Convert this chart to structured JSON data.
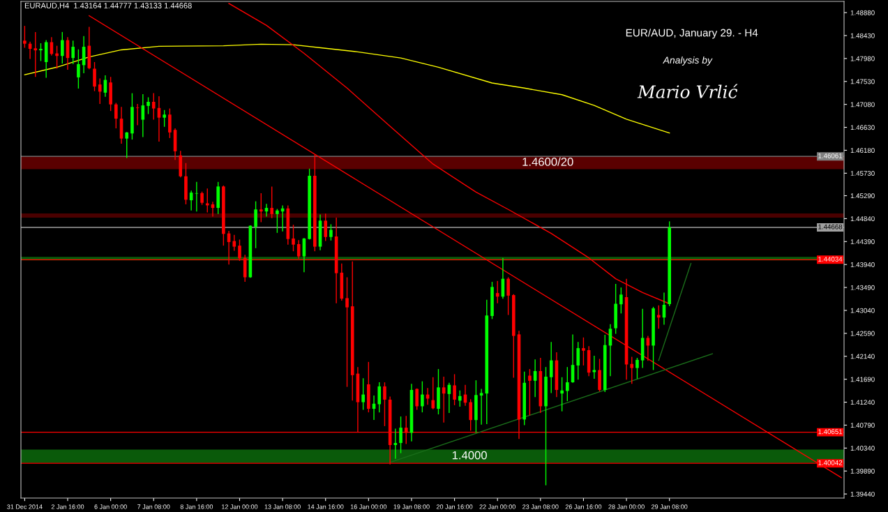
{
  "chart_data": {
    "type": "candlestick",
    "title": "EUR/AUD, January 29. - H4",
    "subtitle": "Analysis by",
    "annotations": [
      "Mario Vrlić",
      "EURAUD,H4  1.43164 1.44777 1.43133 1.44668"
    ],
    "categories": [
      "31 Dec 2014",
      null,
      null,
      null,
      null,
      null,
      null,
      null,
      "2 Jan 16:00",
      null,
      null,
      null,
      null,
      null,
      null,
      null,
      "6 Jan 00:00",
      null,
      null,
      null,
      null,
      null,
      null,
      null,
      "7 Jan 08:00",
      null,
      null,
      null,
      null,
      null,
      null,
      null,
      "8 Jan 16:00",
      null,
      null,
      null,
      null,
      null,
      null,
      null,
      "12 Jan 00:00",
      null,
      null,
      null,
      null,
      null,
      null,
      null,
      "13 Jan 08:00",
      null,
      null,
      null,
      null,
      null,
      null,
      null,
      "14 Jan 16:00",
      null,
      null,
      null,
      null,
      null,
      null,
      null,
      "16 Jan 00:00",
      null,
      null,
      null,
      null,
      null,
      null,
      null,
      "19 Jan 08:00",
      null,
      null,
      null,
      null,
      null,
      null,
      null,
      "20 Jan 16:00",
      null,
      null,
      null,
      null,
      null,
      null,
      null,
      "22 Jan 00:00",
      null,
      null,
      null,
      null,
      null,
      null,
      null,
      "23 Jan 08:00",
      null,
      null,
      null,
      null,
      null,
      null,
      null,
      "26 Jan 16:00",
      null,
      null,
      null,
      null,
      null,
      null,
      null,
      "28 Jan 00:00",
      null,
      null,
      null,
      null,
      null,
      null,
      null,
      "29 Jan 08:00",
      null,
      null,
      null,
      null,
      null,
      null,
      null,
      null,
      null,
      null,
      null,
      null,
      null,
      null,
      null,
      null,
      null,
      null,
      null,
      null,
      null,
      null,
      null,
      null,
      null,
      null,
      null,
      null,
      null,
      null,
      null,
      null
    ],
    "ohlc": [
      [
        1.4833,
        1.4861,
        1.482,
        1.4827
      ],
      [
        1.4827,
        1.483,
        1.4798,
        1.4817
      ],
      [
        1.4818,
        1.4849,
        1.4763,
        1.4814
      ],
      [
        1.4814,
        1.4827,
        1.4794,
        1.4817
      ],
      [
        1.4791,
        1.4833,
        1.4761,
        1.483
      ],
      [
        1.483,
        1.4839,
        1.4805,
        1.4807
      ],
      [
        1.4808,
        1.4822,
        1.4779,
        1.4803
      ],
      [
        1.4803,
        1.4849,
        1.4789,
        1.4834
      ],
      [
        1.4834,
        1.4839,
        1.4777,
        1.4799
      ],
      [
        1.4799,
        1.4832,
        1.4788,
        1.4821
      ],
      [
        1.4761,
        1.4815,
        1.474,
        1.4787
      ],
      [
        1.4785,
        1.4841,
        1.477,
        1.4821
      ],
      [
        1.4823,
        1.4859,
        1.4778,
        1.4779
      ],
      [
        1.4778,
        1.479,
        1.4735,
        1.4743
      ],
      [
        1.4747,
        1.4758,
        1.471,
        1.4733
      ],
      [
        1.4731,
        1.4764,
        1.4724,
        1.4756
      ],
      [
        1.4751,
        1.4761,
        1.4696,
        1.4708
      ],
      [
        1.4708,
        1.471,
        1.4662,
        1.468
      ],
      [
        1.468,
        1.4702,
        1.4632,
        1.4641
      ],
      [
        1.4641,
        1.4653,
        1.4604,
        1.4653
      ],
      [
        1.4651,
        1.4729,
        1.464,
        1.4703
      ],
      [
        1.4702,
        1.4708,
        1.4668,
        1.4701
      ],
      [
        1.4678,
        1.4727,
        1.4645,
        1.4706
      ],
      [
        1.4705,
        1.4721,
        1.469,
        1.4713
      ],
      [
        1.4713,
        1.4729,
        1.4679,
        1.47
      ],
      [
        1.4701,
        1.4723,
        1.4636,
        1.4682
      ],
      [
        1.4682,
        1.4696,
        1.4665,
        1.4688
      ],
      [
        1.4688,
        1.4699,
        1.4643,
        1.4653
      ],
      [
        1.4658,
        1.466,
        1.46,
        1.4616
      ],
      [
        1.4608,
        1.4616,
        1.4566,
        1.4567
      ],
      [
        1.4567,
        1.4592,
        1.4513,
        1.4521
      ],
      [
        1.452,
        1.4538,
        1.4501,
        1.4535
      ],
      [
        1.4533,
        1.4555,
        1.4499,
        1.4534
      ],
      [
        1.4534,
        1.4536,
        1.4512,
        1.4515
      ],
      [
        1.4514,
        1.4542,
        1.4497,
        1.451
      ],
      [
        1.4512,
        1.4516,
        1.4489,
        1.4505
      ],
      [
        1.4505,
        1.4555,
        1.4494,
        1.4547
      ],
      [
        1.4547,
        1.4548,
        1.4432,
        1.4454
      ],
      [
        1.4455,
        1.4459,
        1.4395,
        1.4438
      ],
      [
        1.444,
        1.4451,
        1.4422,
        1.4429
      ],
      [
        1.4431,
        1.4442,
        1.4402,
        1.4406
      ],
      [
        1.4407,
        1.4412,
        1.4361,
        1.4369
      ],
      [
        1.4369,
        1.447,
        1.4369,
        1.447
      ],
      [
        1.4468,
        1.4517,
        1.4427,
        1.4502
      ],
      [
        1.4502,
        1.4533,
        1.4478,
        1.4498
      ],
      [
        1.4498,
        1.4512,
        1.4489,
        1.4505
      ],
      [
        1.4505,
        1.4546,
        1.4486,
        1.4493
      ],
      [
        1.4493,
        1.4502,
        1.4457,
        1.45
      ],
      [
        1.4498,
        1.4509,
        1.446,
        1.4504
      ],
      [
        1.4504,
        1.4509,
        1.4434,
        1.4444
      ],
      [
        1.4445,
        1.4471,
        1.4421,
        1.4433
      ],
      [
        1.4434,
        1.4441,
        1.4406,
        1.441
      ],
      [
        1.441,
        1.4445,
        1.438,
        1.4445
      ],
      [
        1.4444,
        1.4581,
        1.4444,
        1.4568
      ],
      [
        1.4568,
        1.4608,
        1.4421,
        1.4429
      ],
      [
        1.4429,
        1.4491,
        1.4423,
        1.448
      ],
      [
        1.448,
        1.4493,
        1.4441,
        1.4448
      ],
      [
        1.4448,
        1.4472,
        1.4442,
        1.4462
      ],
      [
        1.4449,
        1.4485,
        1.4319,
        1.4377
      ],
      [
        1.4378,
        1.4395,
        1.4324,
        1.4327
      ],
      [
        1.4328,
        1.4368,
        1.4155,
        1.431
      ],
      [
        1.4312,
        1.4399,
        1.4128,
        1.4177
      ],
      [
        1.418,
        1.4192,
        1.4066,
        1.4124
      ],
      [
        1.4124,
        1.417,
        1.411,
        1.4139
      ],
      [
        1.4159,
        1.4202,
        1.4105,
        1.4111
      ],
      [
        1.4111,
        1.4136,
        1.409,
        1.4121
      ],
      [
        1.412,
        1.4162,
        1.4105,
        1.4155
      ],
      [
        1.4155,
        1.4162,
        1.4078,
        1.4129
      ],
      [
        1.4129,
        1.4134,
        1.4003,
        1.404
      ],
      [
        1.404,
        1.4071,
        1.4014,
        1.4044
      ],
      [
        1.4044,
        1.4095,
        1.4025,
        1.4074
      ],
      [
        1.4074,
        1.4096,
        1.4043,
        1.4064
      ],
      [
        1.4064,
        1.4159,
        1.4048,
        1.4148
      ],
      [
        1.415,
        1.415,
        1.411,
        1.4116
      ],
      [
        1.4116,
        1.4164,
        1.4105,
        1.4139
      ],
      [
        1.4139,
        1.4151,
        1.412,
        1.4131
      ],
      [
        1.4128,
        1.4172,
        1.4111,
        1.4112
      ],
      [
        1.4111,
        1.4188,
        1.4101,
        1.4153
      ],
      [
        1.4153,
        1.4173,
        1.4085,
        1.4141
      ],
      [
        1.414,
        1.4161,
        1.4104,
        1.4158
      ],
      [
        1.4157,
        1.4178,
        1.4119,
        1.4129
      ],
      [
        1.4127,
        1.4146,
        1.4116,
        1.4136
      ],
      [
        1.4139,
        1.4157,
        1.4118,
        1.4123
      ],
      [
        1.4124,
        1.4129,
        1.4069,
        1.4089
      ],
      [
        1.4089,
        1.4166,
        1.4065,
        1.4138
      ],
      [
        1.4137,
        1.4149,
        1.4081,
        1.4142
      ],
      [
        1.4141,
        1.4324,
        1.4082,
        1.4294
      ],
      [
        1.4293,
        1.4359,
        1.4288,
        1.435
      ],
      [
        1.4338,
        1.4361,
        1.4319,
        1.4331
      ],
      [
        1.4331,
        1.4406,
        1.4328,
        1.4366
      ],
      [
        1.4366,
        1.4368,
        1.4296,
        1.4333
      ],
      [
        1.4334,
        1.4335,
        1.4173,
        1.4254
      ],
      [
        1.4257,
        1.4263,
        1.4053,
        1.409
      ],
      [
        1.409,
        1.4183,
        1.408,
        1.4162
      ],
      [
        1.4176,
        1.4188,
        1.4099,
        1.4166
      ],
      [
        1.4166,
        1.4207,
        1.4135,
        1.4185
      ],
      [
        1.4185,
        1.421,
        1.4104,
        1.4116
      ],
      [
        1.4116,
        1.4192,
        1.3962,
        1.4174
      ],
      [
        1.4173,
        1.4241,
        1.4143,
        1.4206
      ],
      [
        1.4206,
        1.4221,
        1.4135,
        1.4148
      ],
      [
        1.4141,
        1.4172,
        1.4107,
        1.4147
      ],
      [
        1.4146,
        1.4192,
        1.4127,
        1.4163
      ],
      [
        1.4163,
        1.4256,
        1.4163,
        1.4197
      ],
      [
        1.4196,
        1.4241,
        1.4169,
        1.423
      ],
      [
        1.423,
        1.425,
        1.4197,
        1.4225
      ],
      [
        1.4226,
        1.4233,
        1.4176,
        1.4182
      ],
      [
        1.4183,
        1.4214,
        1.4171,
        1.4187
      ],
      [
        1.4187,
        1.4208,
        1.4146,
        1.4148
      ],
      [
        1.4148,
        1.4255,
        1.4145,
        1.4236
      ],
      [
        1.4235,
        1.4276,
        1.4176,
        1.4268
      ],
      [
        1.4269,
        1.4355,
        1.4259,
        1.4317
      ],
      [
        1.4316,
        1.4348,
        1.4299,
        1.4335
      ],
      [
        1.433,
        1.4365,
        1.4169,
        1.4198
      ],
      [
        1.4199,
        1.4212,
        1.4161,
        1.4191
      ],
      [
        1.4191,
        1.421,
        1.4171,
        1.4207
      ],
      [
        1.4206,
        1.4306,
        1.4192,
        1.425
      ],
      [
        1.425,
        1.4253,
        1.4206,
        1.4235
      ],
      [
        1.4235,
        1.431,
        1.4188,
        1.4308
      ],
      [
        1.4295,
        1.4313,
        1.4269,
        1.429
      ],
      [
        1.429,
        1.4338,
        1.4277,
        1.4315
      ],
      [
        1.43164,
        1.44777,
        1.43133,
        1.44668
      ],
      null,
      null,
      null,
      null,
      null,
      null,
      null,
      null,
      null,
      null,
      null,
      null,
      null,
      null,
      null,
      null,
      null,
      null,
      null,
      null,
      null,
      null,
      null,
      null,
      null,
      null,
      null,
      null,
      null,
      null,
      null,
      null
    ],
    "colors": [
      "#ff0000",
      "#ff0000",
      "#ff0000",
      "#00ff00",
      "#00ff00",
      "#ff0000",
      "#ff0000",
      "#00ff00",
      "#ff0000",
      "#00ff00",
      "#00ff00",
      "#00ff00",
      "#ff0000",
      "#ff0000",
      "#ff0000",
      "#00ff00",
      "#ff0000",
      "#ff0000",
      "#ff0000",
      "#00ff00",
      "#00ff00",
      "#ff0000",
      "#00ff00",
      "#00ff00",
      "#ff0000",
      "#ff0000",
      "#00ff00",
      "#ff0000",
      "#ff0000",
      "#ff0000",
      "#ff0000",
      "#00ff00",
      "#00ff00",
      "#ff0000",
      "#ff0000",
      "#ff0000",
      "#00ff00",
      "#ff0000",
      "#ff0000",
      "#ff0000",
      "#ff0000",
      "#ff0000",
      "#00ff00",
      "#00ff00",
      "#ff0000",
      "#00ff00",
      "#ff0000",
      "#00ff00",
      "#00ff00",
      "#ff0000",
      "#ff0000",
      "#ff0000",
      "#00ff00",
      "#00ff00",
      "#ff0000",
      "#00ff00",
      "#ff0000",
      "#00ff00",
      "#ff0000",
      "#ff0000",
      "#ff0000",
      "#ff0000",
      "#ff0000",
      "#00ff00",
      "#ff0000",
      "#00ff00",
      "#00ff00",
      "#ff0000",
      "#ff0000",
      "#00ff00",
      "#00ff00",
      "#ff0000",
      "#00ff00",
      "#ff0000",
      "#00ff00",
      "#ff0000",
      "#ff0000",
      "#00ff00",
      "#ff0000",
      "#00ff00",
      "#ff0000",
      "#00ff00",
      "#ff0000",
      "#ff0000",
      "#00ff00",
      "#00ff00",
      "#00ff00",
      "#00ff00",
      "#ff0000",
      "#00ff00",
      "#ff0000",
      "#ff0000",
      "#ff0000",
      "#00ff00",
      "#ff0000",
      "#00ff00",
      "#ff0000",
      "#00ff00",
      "#00ff00",
      "#ff0000",
      "#00ff00",
      "#00ff00",
      "#00ff00",
      "#00ff00",
      "#ff0000",
      "#ff0000",
      "#00ff00",
      "#ff0000",
      "#00ff00",
      "#00ff00",
      "#00ff00",
      "#00ff00",
      "#ff0000",
      "#ff0000",
      "#00ff00",
      "#00ff00",
      "#ff0000",
      "#00ff00",
      "#ff0000",
      "#00ff00",
      "#00ff00",
      null,
      null,
      null,
      null,
      null,
      null,
      null,
      null,
      null,
      null,
      null,
      null,
      null,
      null,
      null,
      null,
      null,
      null,
      null,
      null,
      null,
      null,
      null,
      null,
      null,
      null,
      null,
      null,
      null,
      null,
      null,
      null
    ],
    "series": [
      {
        "type": "line",
        "color": "#ffff00",
        "values": [
          1.4766,
          null,
          null,
          null,
          null,
          null,
          1.4781,
          null,
          null,
          null,
          null,
          null,
          1.4801,
          null,
          null,
          null,
          null,
          null,
          1.4815,
          null,
          null,
          null,
          null,
          null,
          null,
          1.4822,
          null,
          null,
          null,
          null,
          null,
          null,
          null,
          null,
          null,
          null,
          null,
          1.4823,
          null,
          null,
          null,
          null,
          null,
          null,
          1.4826,
          null,
          null,
          null,
          null,
          null,
          1.4825,
          null,
          null,
          null,
          null,
          null,
          1.4818,
          null,
          null,
          null,
          null,
          null,
          1.4811,
          null,
          null,
          null,
          null,
          null,
          null,
          null,
          1.4799,
          null,
          null,
          null,
          null,
          null,
          null,
          1.4781,
          null,
          null,
          null,
          null,
          null,
          null,
          null,
          null,
          null,
          1.475,
          null,
          null,
          null,
          null,
          null,
          1.474,
          null,
          null,
          null,
          null,
          null,
          null,
          1.4727,
          null,
          null,
          null,
          null,
          null,
          1.4706,
          null,
          null,
          null,
          null,
          null,
          1.4679,
          null,
          null,
          null,
          null,
          null,
          null,
          null,
          1.4652,
          null,
          null,
          null,
          null,
          null,
          null,
          null,
          null,
          null,
          null,
          null,
          null,
          null,
          null,
          null,
          null,
          null,
          null,
          null,
          null,
          null,
          null,
          null,
          null,
          null,
          null,
          null,
          null,
          null,
          null,
          null,
          null
        ]
      },
      {
        "type": "line",
        "color": "#ff0000",
        "values": [
          null,
          null,
          null,
          null,
          null,
          null,
          null,
          null,
          null,
          null,
          null,
          null,
          null,
          null,
          null,
          null,
          null,
          null,
          null,
          null,
          null,
          null,
          null,
          null,
          null,
          null,
          null,
          null,
          null,
          null,
          null,
          null,
          null,
          null,
          null,
          null,
          null,
          null,
          1.4906,
          null,
          null,
          null,
          null,
          null,
          null,
          1.4863,
          null,
          null,
          null,
          null,
          null,
          null,
          1.4808,
          null,
          null,
          null,
          null,
          null,
          null,
          null,
          1.474,
          null,
          null,
          null,
          null,
          null,
          null,
          null,
          1.4665,
          null,
          null,
          null,
          null,
          null,
          null,
          null,
          1.4591,
          null,
          null,
          null,
          null,
          null,
          null,
          null,
          1.4536,
          null,
          null,
          null,
          null,
          null,
          1.4502,
          null,
          null,
          null,
          null,
          null,
          null,
          null,
          1.4455,
          null,
          null,
          null,
          null,
          null,
          null,
          1.4407,
          null,
          null,
          null,
          null,
          1.4366,
          null,
          null,
          null,
          null,
          1.4339,
          null,
          null,
          null,
          null,
          1.4317,
          null,
          null,
          null,
          null,
          null,
          null,
          null,
          null,
          null,
          null,
          null,
          null,
          null,
          null,
          null,
          null,
          null,
          null,
          null,
          null,
          null,
          null,
          null,
          null,
          null,
          null,
          null,
          null,
          null,
          null,
          null,
          null
        ]
      },
      {
        "type": "line",
        "color": "#ff0000",
        "values": [
          null,
          null,
          null,
          null,
          null,
          null,
          null,
          null,
          null,
          null,
          null,
          null,
          1.4882,
          null,
          null,
          null,
          null,
          null,
          null,
          null,
          null,
          null,
          null,
          null,
          null,
          null,
          null,
          null,
          null,
          null,
          null,
          null,
          null,
          null,
          null,
          null,
          null,
          null,
          null,
          null,
          null,
          null,
          null,
          null,
          null,
          null,
          null,
          null,
          null,
          null,
          null,
          null,
          null,
          null,
          null,
          null,
          null,
          null,
          null,
          null,
          null,
          null,
          null,
          null,
          null,
          null,
          null,
          null,
          null,
          null,
          null,
          null,
          null,
          null,
          null,
          null,
          null,
          null,
          null,
          null,
          null,
          null,
          null,
          null,
          null,
          null,
          null,
          null,
          null,
          null,
          null,
          null,
          null,
          null,
          null,
          null,
          null,
          null,
          null,
          null,
          null,
          null,
          null,
          null,
          null,
          null,
          null,
          null,
          null,
          null,
          null,
          null,
          null,
          null,
          null,
          null,
          null,
          null,
          null,
          null,
          null,
          null,
          null,
          null,
          null,
          null,
          null,
          null,
          null,
          null,
          null,
          null,
          null,
          null,
          null,
          null,
          null,
          null,
          null,
          null,
          null,
          null,
          null,
          null,
          null,
          null,
          null,
          null,
          null,
          null,
          null,
          null,
          1.3976
        ]
      },
      {
        "type": "line",
        "color": "#1a6e1a",
        "values": [
          null,
          null,
          null,
          null,
          null,
          null,
          null,
          null,
          null,
          null,
          null,
          null,
          null,
          null,
          null,
          null,
          null,
          null,
          null,
          null,
          null,
          null,
          null,
          null,
          null,
          null,
          null,
          null,
          null,
          null,
          null,
          null,
          null,
          null,
          null,
          null,
          null,
          null,
          null,
          null,
          null,
          null,
          null,
          null,
          null,
          null,
          null,
          null,
          null,
          null,
          null,
          null,
          null,
          null,
          null,
          null,
          null,
          null,
          null,
          null,
          null,
          null,
          null,
          null,
          null,
          null,
          null,
          null,
          1.4006,
          null,
          null,
          null,
          null,
          null,
          null,
          null,
          null,
          null,
          null,
          null,
          null,
          null,
          null,
          null,
          null,
          null,
          null,
          null,
          null,
          null,
          null,
          null,
          null,
          null,
          null,
          null,
          null,
          null,
          null,
          null,
          null,
          null,
          null,
          null,
          null,
          null,
          null,
          null,
          null,
          null,
          null,
          null,
          null,
          null,
          null,
          null,
          null,
          null,
          null,
          null,
          null,
          null,
          null,
          null,
          null,
          null,
          null,
          null,
          1.4219,
          null,
          null,
          null,
          null,
          null,
          null,
          null,
          null,
          null,
          null,
          null,
          null,
          null,
          null,
          null,
          null,
          null,
          null,
          null,
          null,
          null,
          null,
          null,
          null
        ]
      },
      {
        "type": "line",
        "color": "#1a6e1a",
        "values": [
          null,
          null,
          null,
          null,
          null,
          null,
          null,
          null,
          null,
          null,
          null,
          null,
          null,
          null,
          null,
          null,
          null,
          null,
          null,
          null,
          null,
          null,
          null,
          null,
          null,
          null,
          null,
          null,
          null,
          null,
          null,
          null,
          null,
          null,
          null,
          null,
          null,
          null,
          null,
          null,
          null,
          null,
          null,
          null,
          null,
          null,
          null,
          null,
          null,
          null,
          null,
          null,
          null,
          null,
          null,
          null,
          null,
          null,
          null,
          null,
          null,
          null,
          null,
          null,
          null,
          null,
          null,
          null,
          null,
          null,
          null,
          null,
          null,
          null,
          null,
          null,
          null,
          null,
          null,
          null,
          null,
          null,
          null,
          null,
          null,
          null,
          null,
          null,
          null,
          null,
          null,
          null,
          null,
          null,
          null,
          null,
          null,
          null,
          null,
          null,
          null,
          null,
          null,
          null,
          null,
          null,
          null,
          null,
          null,
          null,
          null,
          null,
          null,
          null,
          null,
          null,
          null,
          null,
          1.4206,
          null,
          null,
          null,
          null,
          null,
          1.4396,
          null,
          null,
          null,
          null,
          null,
          null,
          null,
          null,
          null,
          null,
          null,
          null,
          null,
          null,
          null,
          null,
          null,
          null,
          null,
          null,
          null,
          null,
          null,
          null,
          null,
          null,
          null,
          null
        ]
      }
    ],
    "ylim": [
      1.3936,
      1.491
    ],
    "yticks": [
      {
        "value": 1.4888,
        "label": "1.48880"
      },
      {
        "value": 1.4843,
        "label": "1.48430"
      },
      {
        "value": 1.4798,
        "label": "1.47980"
      },
      {
        "value": 1.4753,
        "label": "1.47530"
      },
      {
        "value": 1.4708,
        "label": "1.47080"
      },
      {
        "value": 1.4663,
        "label": "1.46630"
      },
      {
        "value": 1.4618,
        "label": "1.46180"
      },
      {
        "value": 1.4573,
        "label": "1.45730"
      },
      {
        "value": 1.4529,
        "label": "1.45290"
      },
      {
        "value": 1.4484,
        "label": "1.44840"
      },
      {
        "value": 1.4439,
        "label": "1.44390"
      },
      {
        "value": 1.4394,
        "label": "1.43940"
      },
      {
        "value": 1.4349,
        "label": "1.43490"
      },
      {
        "value": 1.4304,
        "label": "1.43040"
      },
      {
        "value": 1.4259,
        "label": "1.42590"
      },
      {
        "value": 1.4214,
        "label": "1.42140"
      },
      {
        "value": 1.4169,
        "label": "1.41690"
      },
      {
        "value": 1.4124,
        "label": "1.41240"
      },
      {
        "value": 1.4079,
        "label": "1.40790"
      },
      {
        "value": 1.4034,
        "label": "1.40340"
      },
      {
        "value": 1.3989,
        "label": "1.39890"
      },
      {
        "value": 1.3944,
        "label": "1.39440"
      }
    ],
    "bands": [
      {
        "axis": "y",
        "from": 1.4581,
        "to": 1.4606,
        "label": "1.4600/20",
        "color": "#5a0000"
      },
      {
        "axis": "y",
        "from": 1.4486,
        "to": 1.4494,
        "color": "#4a0000"
      },
      {
        "axis": "y",
        "from": 1.4005,
        "to": 1.4031,
        "label": "1.4000",
        "color": "#0a5a0a"
      },
      {
        "axis": "y",
        "from": 1.4402,
        "to": 1.4409,
        "color": "#0a5a0a"
      }
    ],
    "ref_lines": [
      {
        "axis": "y",
        "value": 1.46061,
        "label": "1.46061",
        "color": "#808080"
      },
      {
        "axis": "y",
        "value": 1.44668,
        "label": "1.44668",
        "color": "#a0a0a0"
      },
      {
        "axis": "y",
        "value": 1.44034,
        "label": "1.44034",
        "color": "#ff0000"
      },
      {
        "axis": "y",
        "value": 1.40651,
        "label": "1.40651",
        "color": "#ff0000"
      },
      {
        "axis": "y",
        "value": 1.40042,
        "label": "1.40042",
        "color": "#ff0000"
      }
    ],
    "grid": false,
    "legend": false
  }
}
